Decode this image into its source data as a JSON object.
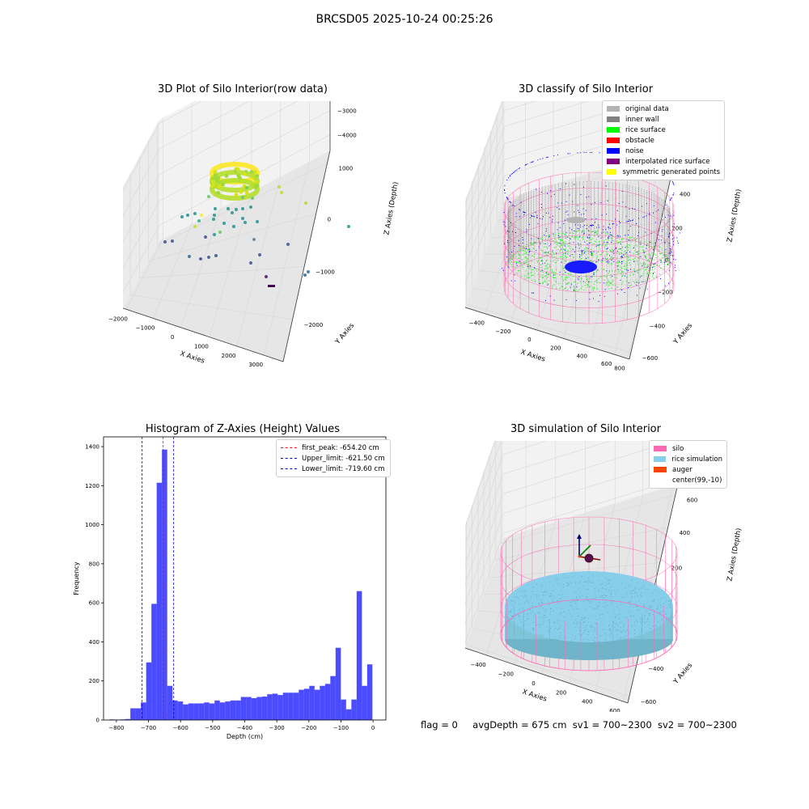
{
  "suptitle": "BRCSD05 2025-10-24 00:25:26",
  "status": {
    "flag": "flag = 0",
    "avg_depth": "avgDepth = 675 cm",
    "sv1": "sv1 = 700~2300",
    "sv2": "sv2 = 700~2300"
  },
  "chart_data": [
    {
      "type": "scatter",
      "title": "3D Plot of Silo Interior(row data)",
      "xlabel": "X Axies",
      "ylabel": "Y Axies",
      "zlabel": "Z Axies (Depth)",
      "x_ticks": [
        "−2000",
        "−1000",
        "0",
        "1000",
        "2000",
        "3000"
      ],
      "y_ticks": [
        "−2000",
        "−1000",
        "0",
        "1000"
      ],
      "z_ticks": [
        "−4000",
        "−3000",
        "−2000",
        "−1000",
        "0"
      ],
      "xlim": [
        -2200,
        3500
      ],
      "ylim": [
        -2400,
        1600
      ],
      "zlim": [
        -4500,
        200
      ],
      "colormap": "viridis",
      "colors": {
        "low": "#440154",
        "mid": "#21918c",
        "high": "#fde725"
      }
    },
    {
      "type": "scatter",
      "title": "3D classify of Silo Interior",
      "xlabel": "X Axies",
      "ylabel": "Y Axies",
      "zlabel": "Z Axies (Depth)",
      "x_ticks": [
        "−400",
        "−200",
        "0",
        "200",
        "400",
        "600",
        "800"
      ],
      "y_ticks": [
        "−600",
        "−400",
        "−200",
        "0",
        "200",
        "400",
        "600"
      ],
      "z_ticks": [
        "−800",
        "−600",
        "−400",
        "−200",
        "0",
        "200"
      ],
      "legend": [
        {
          "label": "original data",
          "color": "#b3b3b3"
        },
        {
          "label": "inner wall",
          "color": "#808080"
        },
        {
          "label": "rice surface",
          "color": "#00ff00"
        },
        {
          "label": "obstacle",
          "color": "#ff0000"
        },
        {
          "label": "noise",
          "color": "#0000ff"
        },
        {
          "label": "interpolated rice surface",
          "color": "#800080"
        },
        {
          "label": "symmetric generated points",
          "color": "#ffff00"
        }
      ],
      "colors": {
        "silo_wire": "#ff69b4"
      }
    },
    {
      "type": "bar",
      "title": "Histogram of Z-Axies (Height) Values",
      "xlabel": "Depth (cm)",
      "ylabel": "Frequency",
      "xlim": [
        -840,
        40
      ],
      "ylim": [
        0,
        1450
      ],
      "x_ticks": [
        -800,
        -700,
        -600,
        -500,
        -400,
        -300,
        -200,
        -100,
        0
      ],
      "x_tick_labels": [
        "−800",
        "−700",
        "−600",
        "−500",
        "−400",
        "−300",
        "−200",
        "−100",
        "0"
      ],
      "y_ticks": [
        0,
        200,
        400,
        600,
        800,
        1000,
        1200,
        1400
      ],
      "y_tick_labels": [
        "0",
        "200",
        "400",
        "600",
        "800",
        "1000",
        "1200",
        "1400"
      ],
      "bin_start": -822,
      "bin_width": 16.4,
      "values": [
        3,
        2,
        3,
        5,
        60,
        60,
        90,
        295,
        595,
        1215,
        1385,
        175,
        100,
        95,
        80,
        85,
        85,
        85,
        90,
        85,
        100,
        90,
        95,
        100,
        100,
        118,
        118,
        112,
        118,
        120,
        132,
        135,
        128,
        140,
        140,
        140,
        155,
        160,
        175,
        155,
        175,
        185,
        225,
        370,
        105,
        55,
        105,
        660,
        175,
        285
      ],
      "bar_color": "#0000ff",
      "bar_alpha": 0.7,
      "vlines": [
        {
          "label": "first_peak: -654.20 cm",
          "x": -654.2,
          "color": "#ff0000"
        },
        {
          "label": "Upper_limit: -621.50 cm",
          "x": -621.5,
          "color": "#0000aa"
        },
        {
          "label": "Lower_limit: -719.60 cm",
          "x": -719.6,
          "color": "#0000aa"
        }
      ],
      "legend_position": "upper right"
    },
    {
      "type": "scatter",
      "title": "3D simulation of Silo Interior",
      "xlabel": "X Axies",
      "ylabel": "Y Axies",
      "zlabel": "Z Axies (Depth)",
      "x_ticks": [
        "−400",
        "−200",
        "0",
        "200",
        "400",
        "600"
      ],
      "y_ticks": [
        "−600",
        "−400",
        "−200",
        "0",
        "200",
        "400",
        "600"
      ],
      "z_ticks": [
        "−800",
        "−600",
        "−400",
        "−200",
        "0",
        "200",
        "400"
      ],
      "legend": [
        {
          "label": "silo",
          "color": "#ff69b4"
        },
        {
          "label": "rice simulation",
          "color": "#87ceeb"
        },
        {
          "label": "auger",
          "color": "#ff4500"
        },
        {
          "label": "center(99,-10)",
          "color": ""
        }
      ]
    }
  ]
}
